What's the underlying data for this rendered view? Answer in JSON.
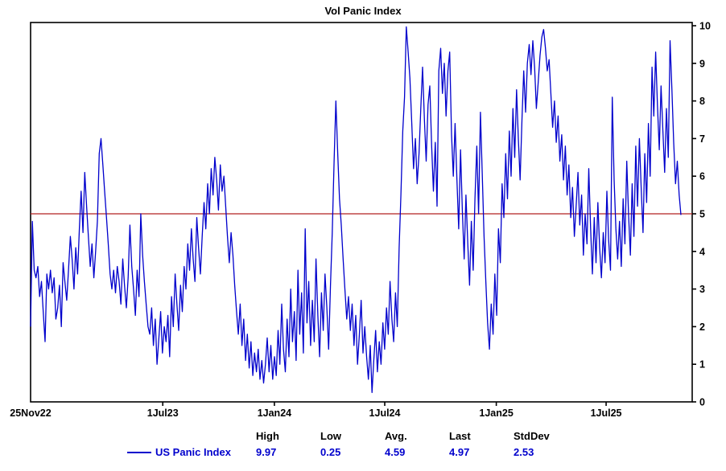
{
  "title": "Vol Panic Index",
  "colors": {
    "line": "#0000cc",
    "reference_line": "#b22222",
    "axis": "#000000",
    "stats_value": "#0000cc"
  },
  "chart_data": {
    "type": "line",
    "title": "Vol Panic Index",
    "series_name": "US Panic Index",
    "ylim": [
      0,
      10
    ],
    "y_ticks": [
      0,
      1,
      2,
      3,
      4,
      5,
      6,
      7,
      8,
      9,
      10
    ],
    "y_axis_side": "right",
    "grid": false,
    "reference_line": 5,
    "x_labels": [
      {
        "label": "25Nov22",
        "pos": 0.0
      },
      {
        "label": "1Jul23",
        "pos": 0.1998
      },
      {
        "label": "1Jan24",
        "pos": 0.3685
      },
      {
        "label": "1Jul24",
        "pos": 0.5353
      },
      {
        "label": "1Jan25",
        "pos": 0.7039
      },
      {
        "label": "1Jul25",
        "pos": 0.8699
      }
    ],
    "values": [
      2.0,
      4.8,
      3.5,
      3.3,
      3.6,
      2.8,
      3.2,
      2.4,
      1.6,
      3.4,
      3.0,
      3.5,
      2.9,
      3.3,
      2.2,
      2.5,
      3.1,
      2.0,
      3.7,
      3.2,
      2.7,
      3.5,
      4.4,
      3.8,
      3.0,
      4.1,
      3.4,
      4.6,
      5.6,
      4.5,
      6.1,
      5.2,
      4.4,
      3.6,
      4.2,
      3.3,
      4.0,
      4.8,
      6.6,
      7.0,
      6.3,
      5.6,
      4.9,
      4.2,
      3.4,
      3.0,
      3.5,
      2.9,
      3.6,
      3.2,
      2.6,
      3.8,
      3.1,
      2.5,
      3.3,
      4.7,
      3.6,
      3.0,
      2.3,
      3.5,
      2.8,
      5.0,
      3.9,
      3.2,
      2.6,
      2.0,
      1.8,
      2.5,
      1.5,
      2.2,
      1.0,
      1.7,
      2.4,
      1.3,
      2.0,
      1.6,
      2.3,
      1.2,
      2.8,
      2.0,
      3.4,
      2.6,
      1.9,
      3.1,
      2.4,
      3.6,
      3.0,
      4.2,
      3.5,
      4.6,
      3.8,
      3.2,
      4.9,
      4.1,
      3.4,
      4.4,
      5.3,
      4.6,
      5.8,
      5.0,
      6.2,
      5.5,
      6.5,
      5.9,
      5.1,
      6.3,
      5.6,
      6.0,
      5.2,
      4.4,
      3.7,
      4.5,
      3.9,
      3.1,
      2.4,
      1.8,
      2.6,
      1.5,
      2.2,
      1.1,
      1.8,
      0.9,
      1.6,
      0.7,
      1.3,
      0.8,
      1.4,
      0.6,
      1.1,
      0.5,
      1.0,
      1.7,
      0.8,
      1.5,
      0.6,
      1.2,
      0.7,
      1.9,
      1.0,
      2.6,
      1.4,
      0.8,
      2.2,
      1.2,
      3.0,
      1.6,
      2.4,
      1.1,
      3.5,
      1.8,
      2.9,
      1.3,
      4.6,
      2.1,
      3.2,
      1.5,
      2.7,
      1.6,
      3.8,
      2.3,
      1.2,
      2.9,
      1.9,
      3.4,
      2.5,
      1.4,
      3.1,
      4.5,
      6.4,
      8.0,
      6.6,
      5.4,
      4.7,
      3.8,
      3.0,
      2.2,
      2.8,
      1.9,
      2.6,
      1.5,
      2.3,
      1.0,
      1.8,
      2.7,
      1.3,
      2.0,
      1.2,
      0.6,
      1.5,
      0.25,
      1.1,
      1.9,
      0.8,
      1.6,
      1.0,
      2.1,
      1.4,
      2.5,
      1.8,
      3.2,
      2.2,
      1.6,
      2.9,
      2.0,
      4.1,
      5.5,
      7.2,
      8.1,
      9.97,
      9.3,
      8.6,
      7.4,
      6.2,
      7.0,
      5.8,
      6.6,
      7.8,
      8.9,
      7.5,
      6.4,
      7.9,
      8.4,
      6.8,
      5.6,
      6.9,
      5.2,
      8.8,
      9.4,
      8.2,
      9.0,
      7.6,
      8.8,
      9.3,
      7.1,
      6.0,
      7.4,
      5.9,
      4.6,
      6.7,
      5.1,
      3.8,
      5.5,
      4.2,
      3.1,
      4.8,
      3.5,
      5.4,
      6.8,
      5.0,
      7.7,
      6.1,
      4.4,
      3.2,
      2.1,
      1.4,
      2.6,
      1.8,
      3.4,
      2.3,
      4.6,
      3.7,
      5.8,
      4.9,
      6.6,
      5.4,
      7.2,
      6.0,
      7.8,
      6.5,
      8.3,
      7.0,
      5.9,
      7.5,
      8.8,
      7.7,
      9.0,
      9.5,
      8.7,
      9.6,
      8.9,
      7.8,
      8.5,
      9.2,
      9.7,
      9.9,
      9.4,
      8.8,
      9.1,
      8.2,
      7.3,
      8.0,
      6.9,
      7.6,
      6.4,
      7.1,
      5.9,
      6.8,
      5.5,
      6.3,
      4.9,
      5.7,
      4.4,
      5.2,
      6.1,
      4.7,
      5.5,
      3.9,
      5.0,
      4.2,
      6.2,
      4.6,
      3.4,
      4.9,
      3.7,
      5.3,
      4.1,
      3.3,
      4.5,
      3.7,
      5.6,
      4.3,
      3.5,
      8.1,
      5.9,
      4.6,
      3.8,
      4.8,
      3.6,
      5.4,
      4.2,
      6.4,
      5.0,
      3.9,
      5.8,
      4.4,
      6.8,
      5.2,
      7.0,
      5.7,
      4.5,
      6.6,
      5.3,
      7.4,
      6.0,
      8.9,
      7.6,
      9.3,
      7.9,
      6.7,
      8.4,
      7.2,
      6.1,
      7.8,
      6.5,
      9.6,
      8.3,
      6.9,
      5.8,
      6.4,
      5.5,
      4.97
    ]
  },
  "stats": {
    "legend_label": "US Panic Index",
    "headers": [
      "High",
      "Low",
      "Avg.",
      "Last",
      "StdDev"
    ],
    "values": [
      "9.97",
      "0.25",
      "4.59",
      "4.97",
      "2.53"
    ]
  }
}
